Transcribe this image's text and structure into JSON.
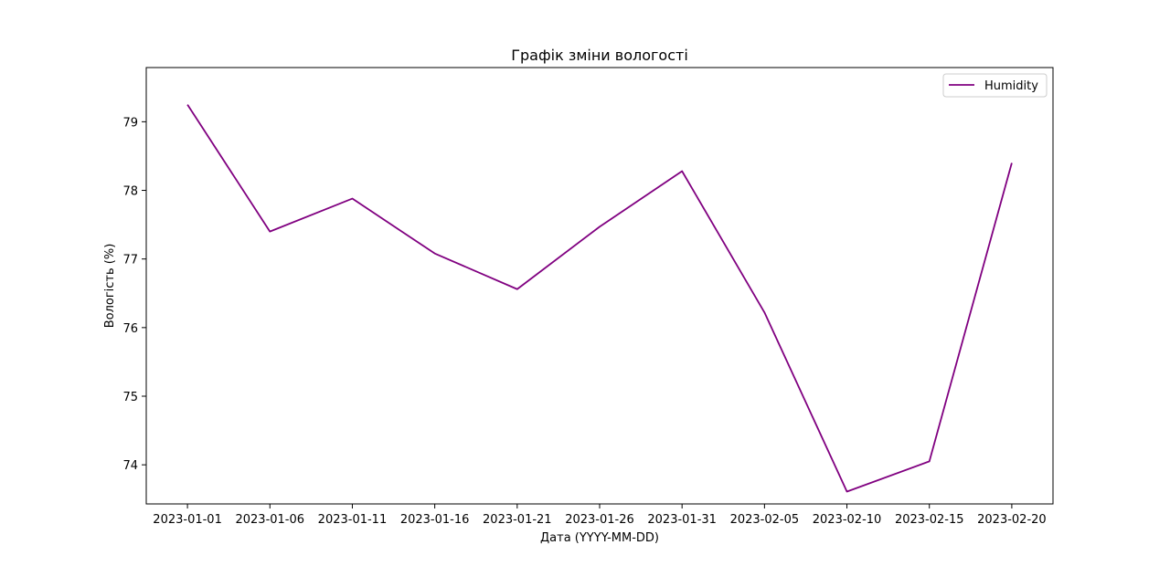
{
  "chart_data": {
    "type": "line",
    "title": "Графік зміни вологості",
    "xlabel": "Дата (YYYY-MM-DD)",
    "ylabel": "Вологість (%)",
    "x": [
      "2023-01-01",
      "2023-01-06",
      "2023-01-11",
      "2023-01-16",
      "2023-01-21",
      "2023-01-26",
      "2023-01-31",
      "2023-02-05",
      "2023-02-10",
      "2023-02-15",
      "2023-02-20"
    ],
    "x_ticks": [
      "2023-01-01",
      "2023-01-06",
      "2023-01-11",
      "2023-01-16",
      "2023-01-21",
      "2023-01-26",
      "2023-01-31",
      "2023-02-05",
      "2023-02-10",
      "2023-02-15",
      "2023-02-20"
    ],
    "y_ticks": [
      74,
      75,
      76,
      77,
      78,
      79
    ],
    "ylim": [
      73.43,
      79.79
    ],
    "series": [
      {
        "name": "Humidity",
        "color": "#800080",
        "values": [
          79.25,
          77.4,
          77.88,
          77.08,
          76.56,
          77.47,
          78.28,
          76.22,
          73.61,
          74.05,
          78.4
        ]
      }
    ],
    "legend": "top-right",
    "grid": false
  }
}
